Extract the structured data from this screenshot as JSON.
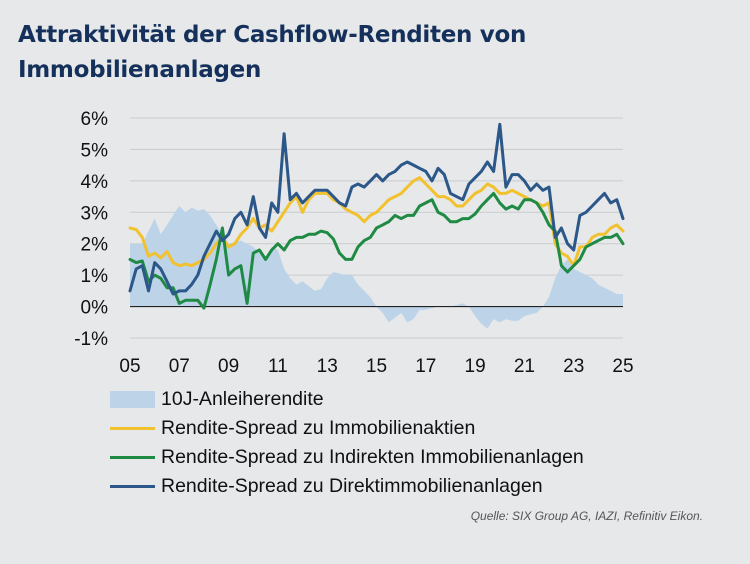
{
  "title": "Attraktivität der Cashflow-Renditen von Immobilienanlagen",
  "source": "Quelle: SIX Group AG, IAZI, Refinitiv Eikon.",
  "colors": {
    "background": "#e6e8ea",
    "title": "#15315b",
    "bond_area": "#bcd3e8",
    "equities": "#f2c12e",
    "indirect": "#1f8a43",
    "direct": "#2c5789",
    "grid": "#c9cbce",
    "zero_line": "#222222"
  },
  "chart_data": {
    "type": "line",
    "title": "Attraktivität der Cashflow-Renditen von Immobilienanlagen",
    "xlabel": "",
    "ylabel": "",
    "ylim": [
      -1,
      6
    ],
    "xlim": [
      2005,
      2025
    ],
    "y_ticks": [
      6,
      5,
      4,
      3,
      2,
      1,
      0,
      -1
    ],
    "y_tick_labels": [
      "6%",
      "5%",
      "4%",
      "3%",
      "2%",
      "1%",
      "0%",
      "-1%"
    ],
    "x_ticks": [
      2005,
      2007,
      2009,
      2011,
      2013,
      2015,
      2017,
      2019,
      2021,
      2023,
      2025
    ],
    "x_tick_labels": [
      "05",
      "07",
      "09",
      "11",
      "13",
      "15",
      "17",
      "19",
      "21",
      "23",
      "25"
    ],
    "legend": [
      "10J-Anleiherendite",
      "Rendite-Spread zu Immobilienaktien",
      "Rendite-Spread zu Indirekten Immobilienanlagen",
      "Rendite-Spread zu Direktimmobilienanlagen"
    ],
    "legend_position": "bottom",
    "series": [
      {
        "name": "10J-Anleiherendite",
        "type": "area",
        "x": [
          2005,
          2005.5,
          2006,
          2006.25,
          2006.5,
          2006.75,
          2007,
          2007.25,
          2007.5,
          2007.75,
          2008,
          2008.25,
          2008.5,
          2008.75,
          2009,
          2009.25,
          2009.5,
          2009.75,
          2010,
          2010.25,
          2010.5,
          2010.75,
          2011,
          2011.25,
          2011.5,
          2011.75,
          2012,
          2012.25,
          2012.5,
          2012.75,
          2013,
          2013.25,
          2013.5,
          2013.75,
          2014,
          2014.25,
          2014.5,
          2014.75,
          2015,
          2015.25,
          2015.5,
          2015.75,
          2016,
          2016.25,
          2016.5,
          2016.75,
          2017,
          2017.25,
          2017.5,
          2017.75,
          2018,
          2018.25,
          2018.5,
          2018.75,
          2019,
          2019.25,
          2019.5,
          2019.75,
          2020,
          2020.25,
          2020.5,
          2020.75,
          2021,
          2021.25,
          2021.5,
          2021.75,
          2022,
          2022.25,
          2022.5,
          2022.75,
          2023,
          2023.25,
          2023.5,
          2023.75,
          2024,
          2024.25,
          2024.5,
          2024.75,
          2025
        ],
        "values": [
          2.0,
          2.0,
          2.8,
          2.3,
          2.6,
          2.9,
          3.2,
          3.0,
          3.15,
          3.05,
          3.1,
          2.9,
          2.6,
          2.3,
          2.0,
          2.05,
          2.1,
          2.0,
          1.9,
          1.7,
          1.5,
          1.9,
          1.8,
          1.2,
          0.9,
          0.7,
          0.8,
          0.65,
          0.5,
          0.55,
          0.9,
          1.1,
          1.05,
          1.0,
          1.0,
          0.7,
          0.5,
          0.3,
          0.0,
          -0.2,
          -0.5,
          -0.35,
          -0.2,
          -0.5,
          -0.4,
          -0.1,
          -0.1,
          -0.05,
          0.0,
          0.0,
          0.0,
          0.05,
          0.1,
          0.0,
          -0.3,
          -0.55,
          -0.7,
          -0.4,
          -0.5,
          -0.4,
          -0.45,
          -0.45,
          -0.3,
          -0.25,
          -0.2,
          0.0,
          0.3,
          0.9,
          1.3,
          1.5,
          1.2,
          1.1,
          1.0,
          0.9,
          0.7,
          0.6,
          0.5,
          0.4,
          0.4
        ]
      },
      {
        "name": "Rendite-Spread zu Immobilienaktien",
        "type": "line",
        "x": [
          2005,
          2005.25,
          2005.5,
          2005.75,
          2006,
          2006.25,
          2006.5,
          2006.75,
          2007,
          2007.25,
          2007.5,
          2007.75,
          2008,
          2008.25,
          2008.5,
          2008.75,
          2009,
          2009.25,
          2009.5,
          2009.75,
          2010,
          2010.25,
          2010.5,
          2010.75,
          2011,
          2011.25,
          2011.5,
          2011.75,
          2012,
          2012.25,
          2012.5,
          2012.75,
          2013,
          2013.25,
          2013.5,
          2013.75,
          2014,
          2014.25,
          2014.5,
          2014.75,
          2015,
          2015.25,
          2015.5,
          2015.75,
          2016,
          2016.25,
          2016.5,
          2016.75,
          2017,
          2017.25,
          2017.5,
          2017.75,
          2018,
          2018.25,
          2018.5,
          2018.75,
          2019,
          2019.25,
          2019.5,
          2019.75,
          2020,
          2020.25,
          2020.5,
          2020.75,
          2021,
          2021.25,
          2021.5,
          2021.75,
          2022,
          2022.25,
          2022.5,
          2022.75,
          2023,
          2023.25,
          2023.5,
          2023.75,
          2024,
          2024.25,
          2024.5,
          2024.75,
          2025
        ],
        "values": [
          2.5,
          2.45,
          2.2,
          1.6,
          1.7,
          1.55,
          1.75,
          1.4,
          1.3,
          1.35,
          1.3,
          1.4,
          1.5,
          1.7,
          2.0,
          2.2,
          1.9,
          2.0,
          2.3,
          2.5,
          2.8,
          2.5,
          2.6,
          2.4,
          2.7,
          3.0,
          3.3,
          3.5,
          3.0,
          3.4,
          3.6,
          3.6,
          3.6,
          3.4,
          3.3,
          3.1,
          3.0,
          2.9,
          2.7,
          2.9,
          3.0,
          3.2,
          3.4,
          3.5,
          3.6,
          3.8,
          4.0,
          4.1,
          3.9,
          3.7,
          3.5,
          3.5,
          3.4,
          3.2,
          3.2,
          3.4,
          3.6,
          3.7,
          3.9,
          3.8,
          3.6,
          3.6,
          3.7,
          3.6,
          3.5,
          3.4,
          3.3,
          3.2,
          3.3,
          2.0,
          1.7,
          1.6,
          1.3,
          1.9,
          1.9,
          2.2,
          2.3,
          2.3,
          2.5,
          2.6,
          2.4
        ]
      },
      {
        "name": "Rendite-Spread zu Indirekten Immobilienanlagen",
        "type": "line",
        "x": [
          2005,
          2005.25,
          2005.5,
          2005.75,
          2006,
          2006.25,
          2006.5,
          2006.75,
          2007,
          2007.25,
          2007.5,
          2007.75,
          2008,
          2008.25,
          2008.5,
          2008.75,
          2009,
          2009.25,
          2009.5,
          2009.75,
          2010,
          2010.25,
          2010.5,
          2010.75,
          2011,
          2011.25,
          2011.5,
          2011.75,
          2012,
          2012.25,
          2012.5,
          2012.75,
          2013,
          2013.25,
          2013.5,
          2013.75,
          2014,
          2014.25,
          2014.5,
          2014.75,
          2015,
          2015.25,
          2015.5,
          2015.75,
          2016,
          2016.25,
          2016.5,
          2016.75,
          2017,
          2017.25,
          2017.5,
          2017.75,
          2018,
          2018.25,
          2018.5,
          2018.75,
          2019,
          2019.25,
          2019.5,
          2019.75,
          2020,
          2020.25,
          2020.5,
          2020.75,
          2021,
          2021.25,
          2021.5,
          2021.75,
          2022,
          2022.25,
          2022.5,
          2022.75,
          2023,
          2023.25,
          2023.5,
          2023.75,
          2024,
          2024.25,
          2024.5,
          2024.75,
          2025
        ],
        "values": [
          1.5,
          1.4,
          1.45,
          0.8,
          1.0,
          0.9,
          0.6,
          0.6,
          0.1,
          0.2,
          0.2,
          0.2,
          -0.05,
          0.7,
          1.5,
          2.5,
          1.0,
          1.2,
          1.3,
          0.1,
          1.7,
          1.8,
          1.5,
          1.8,
          2.0,
          1.8,
          2.1,
          2.2,
          2.2,
          2.3,
          2.3,
          2.4,
          2.35,
          2.15,
          1.7,
          1.5,
          1.5,
          1.9,
          2.1,
          2.2,
          2.5,
          2.6,
          2.7,
          2.9,
          2.8,
          2.9,
          2.9,
          3.2,
          3.3,
          3.4,
          3.0,
          2.9,
          2.7,
          2.7,
          2.8,
          2.8,
          2.95,
          3.2,
          3.4,
          3.6,
          3.3,
          3.1,
          3.2,
          3.1,
          3.4,
          3.4,
          3.3,
          3.0,
          2.6,
          2.4,
          1.3,
          1.1,
          1.3,
          1.5,
          1.9,
          2.0,
          2.1,
          2.2,
          2.2,
          2.3,
          2.0
        ]
      },
      {
        "name": "Rendite-Spread zu Direktimmobilienanlagen",
        "type": "line",
        "x": [
          2005,
          2005.25,
          2005.5,
          2005.75,
          2006,
          2006.25,
          2006.5,
          2006.75,
          2007,
          2007.25,
          2007.5,
          2007.75,
          2008,
          2008.25,
          2008.5,
          2008.75,
          2009,
          2009.25,
          2009.5,
          2009.75,
          2010,
          2010.25,
          2010.5,
          2010.75,
          2011,
          2011.25,
          2011.5,
          2011.75,
          2012,
          2012.25,
          2012.5,
          2012.75,
          2013,
          2013.25,
          2013.5,
          2013.75,
          2014,
          2014.25,
          2014.5,
          2014.75,
          2015,
          2015.25,
          2015.5,
          2015.75,
          2016,
          2016.25,
          2016.5,
          2016.75,
          2017,
          2017.25,
          2017.5,
          2017.75,
          2018,
          2018.25,
          2018.5,
          2018.75,
          2019,
          2019.25,
          2019.5,
          2019.75,
          2020,
          2020.25,
          2020.5,
          2020.75,
          2021,
          2021.25,
          2021.5,
          2021.75,
          2022,
          2022.25,
          2022.5,
          2022.75,
          2023,
          2023.25,
          2023.5,
          2023.75,
          2024,
          2024.25,
          2024.5,
          2024.75,
          2025
        ],
        "values": [
          0.5,
          1.2,
          1.3,
          0.5,
          1.4,
          1.2,
          0.8,
          0.4,
          0.5,
          0.5,
          0.7,
          1.0,
          1.6,
          2.0,
          2.4,
          2.1,
          2.3,
          2.8,
          3.0,
          2.6,
          3.5,
          2.5,
          2.2,
          3.3,
          3.0,
          5.5,
          3.4,
          3.6,
          3.3,
          3.5,
          3.7,
          3.7,
          3.7,
          3.5,
          3.3,
          3.2,
          3.8,
          3.9,
          3.8,
          4.0,
          4.2,
          4.0,
          4.2,
          4.3,
          4.5,
          4.6,
          4.5,
          4.4,
          4.3,
          4.0,
          4.4,
          4.2,
          3.6,
          3.5,
          3.4,
          3.9,
          4.1,
          4.3,
          4.6,
          4.3,
          5.8,
          3.8,
          4.2,
          4.2,
          4.0,
          3.7,
          3.9,
          3.7,
          3.8,
          2.2,
          2.5,
          2.0,
          1.8,
          2.9,
          3.0,
          3.2,
          3.4,
          3.6,
          3.3,
          3.4,
          2.8
        ]
      }
    ]
  }
}
